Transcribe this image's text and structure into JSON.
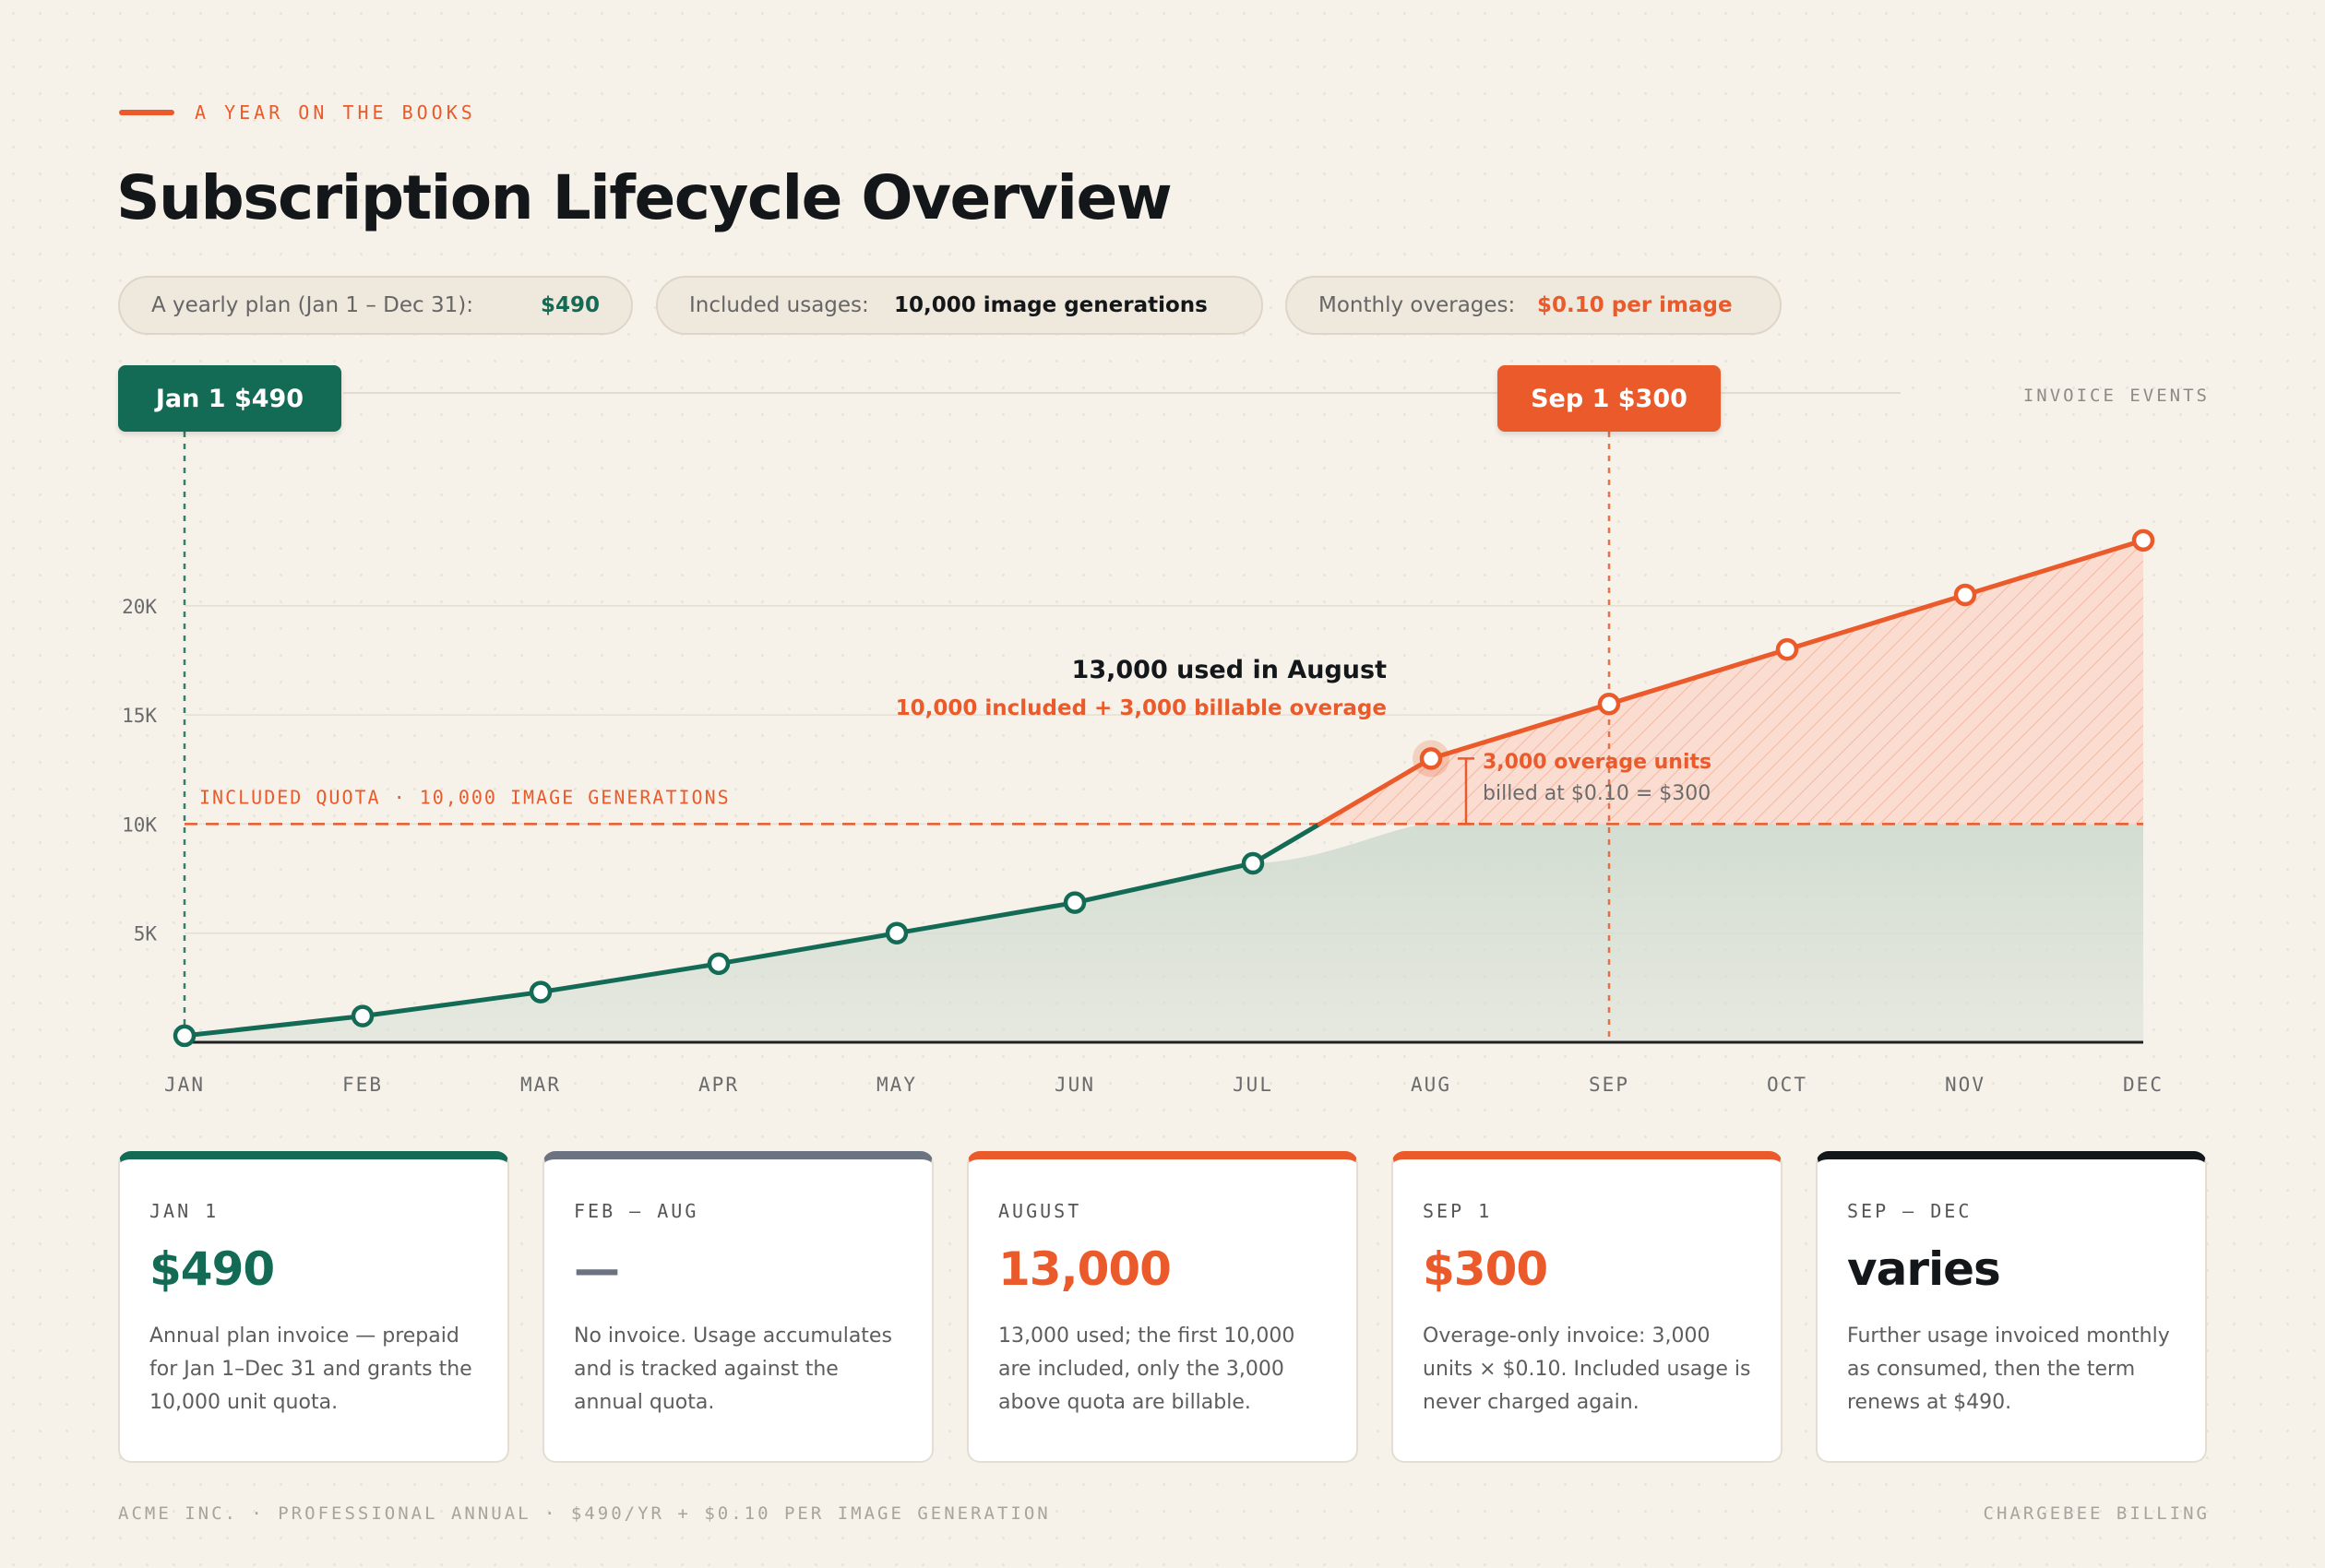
{
  "header": {
    "eyebrow": "A YEAR ON THE BOOKS",
    "title": "Subscription Lifecycle Overview"
  },
  "pills": [
    {
      "label": "A yearly plan (Jan 1 – Dec 31):",
      "value": "$490",
      "color": "#136b55"
    },
    {
      "label": "Included usages:",
      "value": "10,000 image generations",
      "color": "#14171a"
    },
    {
      "label": "Monthly overages:",
      "value": "$0.10 per image",
      "color": "#ea5a2a"
    }
  ],
  "invoice_events_label": "INVOICE EVENTS",
  "events": [
    {
      "label": "Jan 1 $490",
      "month": "JAN",
      "color": "#136b55"
    },
    {
      "label": "Sep 1 $300",
      "month": "SEP",
      "color": "#ea5a2a"
    }
  ],
  "chart_data": {
    "type": "line",
    "categories": [
      "JAN",
      "FEB",
      "MAR",
      "APR",
      "MAY",
      "JUN",
      "JUL",
      "AUG",
      "SEP",
      "OCT",
      "NOV",
      "DEC"
    ],
    "values": [
      300,
      1200,
      2300,
      3600,
      5000,
      6400,
      8200,
      13000,
      15500,
      18000,
      20500,
      23000
    ],
    "y_ticks": [
      {
        "value": 5000,
        "label": "5K"
      },
      {
        "value": 10000,
        "label": "10K"
      },
      {
        "value": 15000,
        "label": "15K"
      },
      {
        "value": 20000,
        "label": "20K"
      }
    ],
    "ylim": [
      0,
      27000
    ],
    "grid": true,
    "quota": {
      "value": 10000,
      "label": "INCLUDED QUOTA · 10,000 IMAGE GENERATIONS"
    },
    "highlight_month": "AUG",
    "callout": {
      "title": "13,000 used in August",
      "subtitle": "10,000 included + 3,000 billable overage"
    },
    "overage_note": {
      "title": "3,000 overage units",
      "detail": "billed at $0.10 = $300"
    },
    "colors": {
      "included": "#136b55",
      "overage": "#ea5a2a",
      "included_fill": "#d3ddd2",
      "overage_fill": "#fadcd0"
    }
  },
  "cards": [
    {
      "label": "JAN 1",
      "value": "$490",
      "value_color": "#136b55",
      "accent": "#136b55",
      "desc": "Annual plan invoice — prepaid for Jan 1–Dec 31 and grants the 10,000 unit quota."
    },
    {
      "label": "FEB – AUG",
      "value": "—",
      "value_color": "#6b7280",
      "accent": "#6b7280",
      "desc": "No invoice. Usage accumulates and is tracked against the annual quota."
    },
    {
      "label": "AUGUST",
      "value": "13,000",
      "value_color": "#ea5a2a",
      "accent": "#ea5a2a",
      "desc": "13,000 used; the first 10,000 are included, only the 3,000 above quota are billable."
    },
    {
      "label": "SEP 1",
      "value": "$300",
      "value_color": "#ea5a2a",
      "accent": "#ea5a2a",
      "desc": "Overage-only invoice: 3,000 units × $0.10. Included usage is never charged again."
    },
    {
      "label": "SEP – DEC",
      "value": "varies",
      "value_color": "#14171a",
      "accent": "#14171a",
      "desc": "Further usage invoiced monthly as consumed, then the term renews at $490."
    }
  ],
  "footer": {
    "left": "ACME INC. · PROFESSIONAL ANNUAL · $490/YR + $0.10 PER IMAGE GENERATION",
    "right": "CHARGEBEE BILLING"
  }
}
